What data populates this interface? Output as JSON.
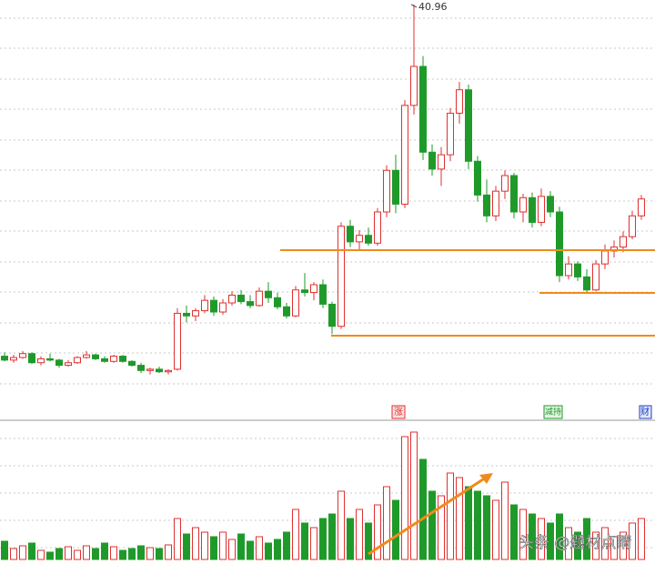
{
  "chart_data": {
    "type": "candlestick",
    "open": [
      13.9,
      13.6,
      13.8,
      14.1,
      13.4,
      13.7,
      13.6,
      13.2,
      13.4,
      13.8,
      14.0,
      13.7,
      13.5,
      13.9,
      13.5,
      13.2,
      12.8,
      12.9,
      12.7,
      12.9,
      17.2,
      17.0,
      17.4,
      18.2,
      17.3,
      18.0,
      18.6,
      18.1,
      17.8,
      18.9,
      18.4,
      17.7,
      17.0,
      19.0,
      18.8,
      19.4,
      17.9,
      16.2,
      23.9,
      22.7,
      23.2,
      22.6,
      25.0,
      28.2,
      25.6,
      33.2,
      36.2,
      29.6,
      28.3,
      29.4,
      32.6,
      34.4,
      28.9,
      26.3,
      24.7,
      26.6,
      27.8,
      25.0,
      26.1,
      24.2,
      26.2,
      25.0,
      20.1,
      21.0,
      20.0,
      19.0,
      21.0,
      22.0,
      22.3,
      23.1,
      24.7
    ],
    "high": [
      14.2,
      14.0,
      14.3,
      14.2,
      13.9,
      14.1,
      13.7,
      13.6,
      13.9,
      14.3,
      14.1,
      13.9,
      14.0,
      14.0,
      13.6,
      13.4,
      13.0,
      13.1,
      12.9,
      17.6,
      17.8,
      17.6,
      18.6,
      18.5,
      18.3,
      18.9,
      19.0,
      18.6,
      19.2,
      19.6,
      18.8,
      18.0,
      19.3,
      20.3,
      19.6,
      19.8,
      18.1,
      24.2,
      24.4,
      23.6,
      23.8,
      25.3,
      28.6,
      29.4,
      33.6,
      40.96,
      37.0,
      30.2,
      30.0,
      33.0,
      35.0,
      34.8,
      29.3,
      27.5,
      27.0,
      28.2,
      28.0,
      26.4,
      26.5,
      26.8,
      26.6,
      25.4,
      21.6,
      21.2,
      20.6,
      21.3,
      22.5,
      22.8,
      23.5,
      25.1,
      26.3
    ],
    "low": [
      13.5,
      13.4,
      13.7,
      13.3,
      13.2,
      13.5,
      13.0,
      13.1,
      13.3,
      13.7,
      13.6,
      13.4,
      13.4,
      13.4,
      13.1,
      12.6,
      12.5,
      12.6,
      12.5,
      12.8,
      16.5,
      16.6,
      17.2,
      17.0,
      17.1,
      17.8,
      17.9,
      17.6,
      17.7,
      18.0,
      17.5,
      16.8,
      16.9,
      18.5,
      18.2,
      17.6,
      15.6,
      16.0,
      22.3,
      22.1,
      22.4,
      22.4,
      24.6,
      24.9,
      25.3,
      32.5,
      29.0,
      27.8,
      27.0,
      28.9,
      31.8,
      28.3,
      25.8,
      24.2,
      24.3,
      26.0,
      24.5,
      24.2,
      23.8,
      23.9,
      24.6,
      19.6,
      19.8,
      19.7,
      18.7,
      18.9,
      20.6,
      21.5,
      21.9,
      22.9,
      24.4
    ],
    "close": [
      13.6,
      13.8,
      14.1,
      13.4,
      13.7,
      13.6,
      13.2,
      13.4,
      13.8,
      14.0,
      13.7,
      13.5,
      13.9,
      13.5,
      13.2,
      12.8,
      12.9,
      12.7,
      12.8,
      17.2,
      17.0,
      17.4,
      18.2,
      17.3,
      18.0,
      18.6,
      18.1,
      17.8,
      18.9,
      18.4,
      17.7,
      17.0,
      19.0,
      18.8,
      19.4,
      17.9,
      16.2,
      23.9,
      22.7,
      23.2,
      22.6,
      25.0,
      28.2,
      25.6,
      33.2,
      36.2,
      29.6,
      28.3,
      29.4,
      32.6,
      34.4,
      28.9,
      26.3,
      24.7,
      26.6,
      27.8,
      25.0,
      26.1,
      24.2,
      26.2,
      25.0,
      20.1,
      21.0,
      20.0,
      19.0,
      21.0,
      22.0,
      22.3,
      23.1,
      24.7,
      26.0
    ],
    "high_labels": [
      null,
      null,
      null,
      null,
      null,
      null,
      null,
      null,
      null,
      null,
      null,
      null,
      null,
      null,
      null,
      null,
      null,
      null,
      null,
      null,
      null,
      null,
      null,
      null,
      null,
      null,
      null,
      null,
      null,
      null,
      null,
      null,
      null,
      null,
      null,
      null,
      null,
      null,
      null,
      null,
      null,
      null,
      null,
      null,
      null,
      "40.96",
      null,
      null,
      null,
      null,
      null,
      null,
      null,
      null,
      null,
      null,
      null,
      null,
      null,
      null,
      null,
      null,
      null,
      null,
      null,
      null,
      null,
      null,
      null,
      null,
      null
    ],
    "volume": [
      20,
      12,
      15,
      18,
      10,
      8,
      12,
      14,
      10,
      15,
      12,
      18,
      14,
      10,
      12,
      15,
      13,
      12,
      16,
      45,
      28,
      35,
      30,
      25,
      30,
      22,
      28,
      20,
      25,
      18,
      22,
      30,
      55,
      40,
      35,
      45,
      50,
      75,
      45,
      55,
      40,
      60,
      80,
      65,
      135,
      140,
      110,
      75,
      70,
      95,
      90,
      80,
      75,
      70,
      65,
      85,
      60,
      55,
      50,
      45,
      40,
      50,
      35,
      30,
      45,
      30,
      35,
      25,
      30,
      40,
      45
    ],
    "ylim": [
      10.16,
      41.31
    ],
    "volume_ylim": [
      0,
      150
    ],
    "up_color": "#e03030",
    "down_color": "#1f9a2a",
    "markers": [
      "涨",
      "减持",
      "财"
    ],
    "watermark": "头条 @题材点睛"
  }
}
